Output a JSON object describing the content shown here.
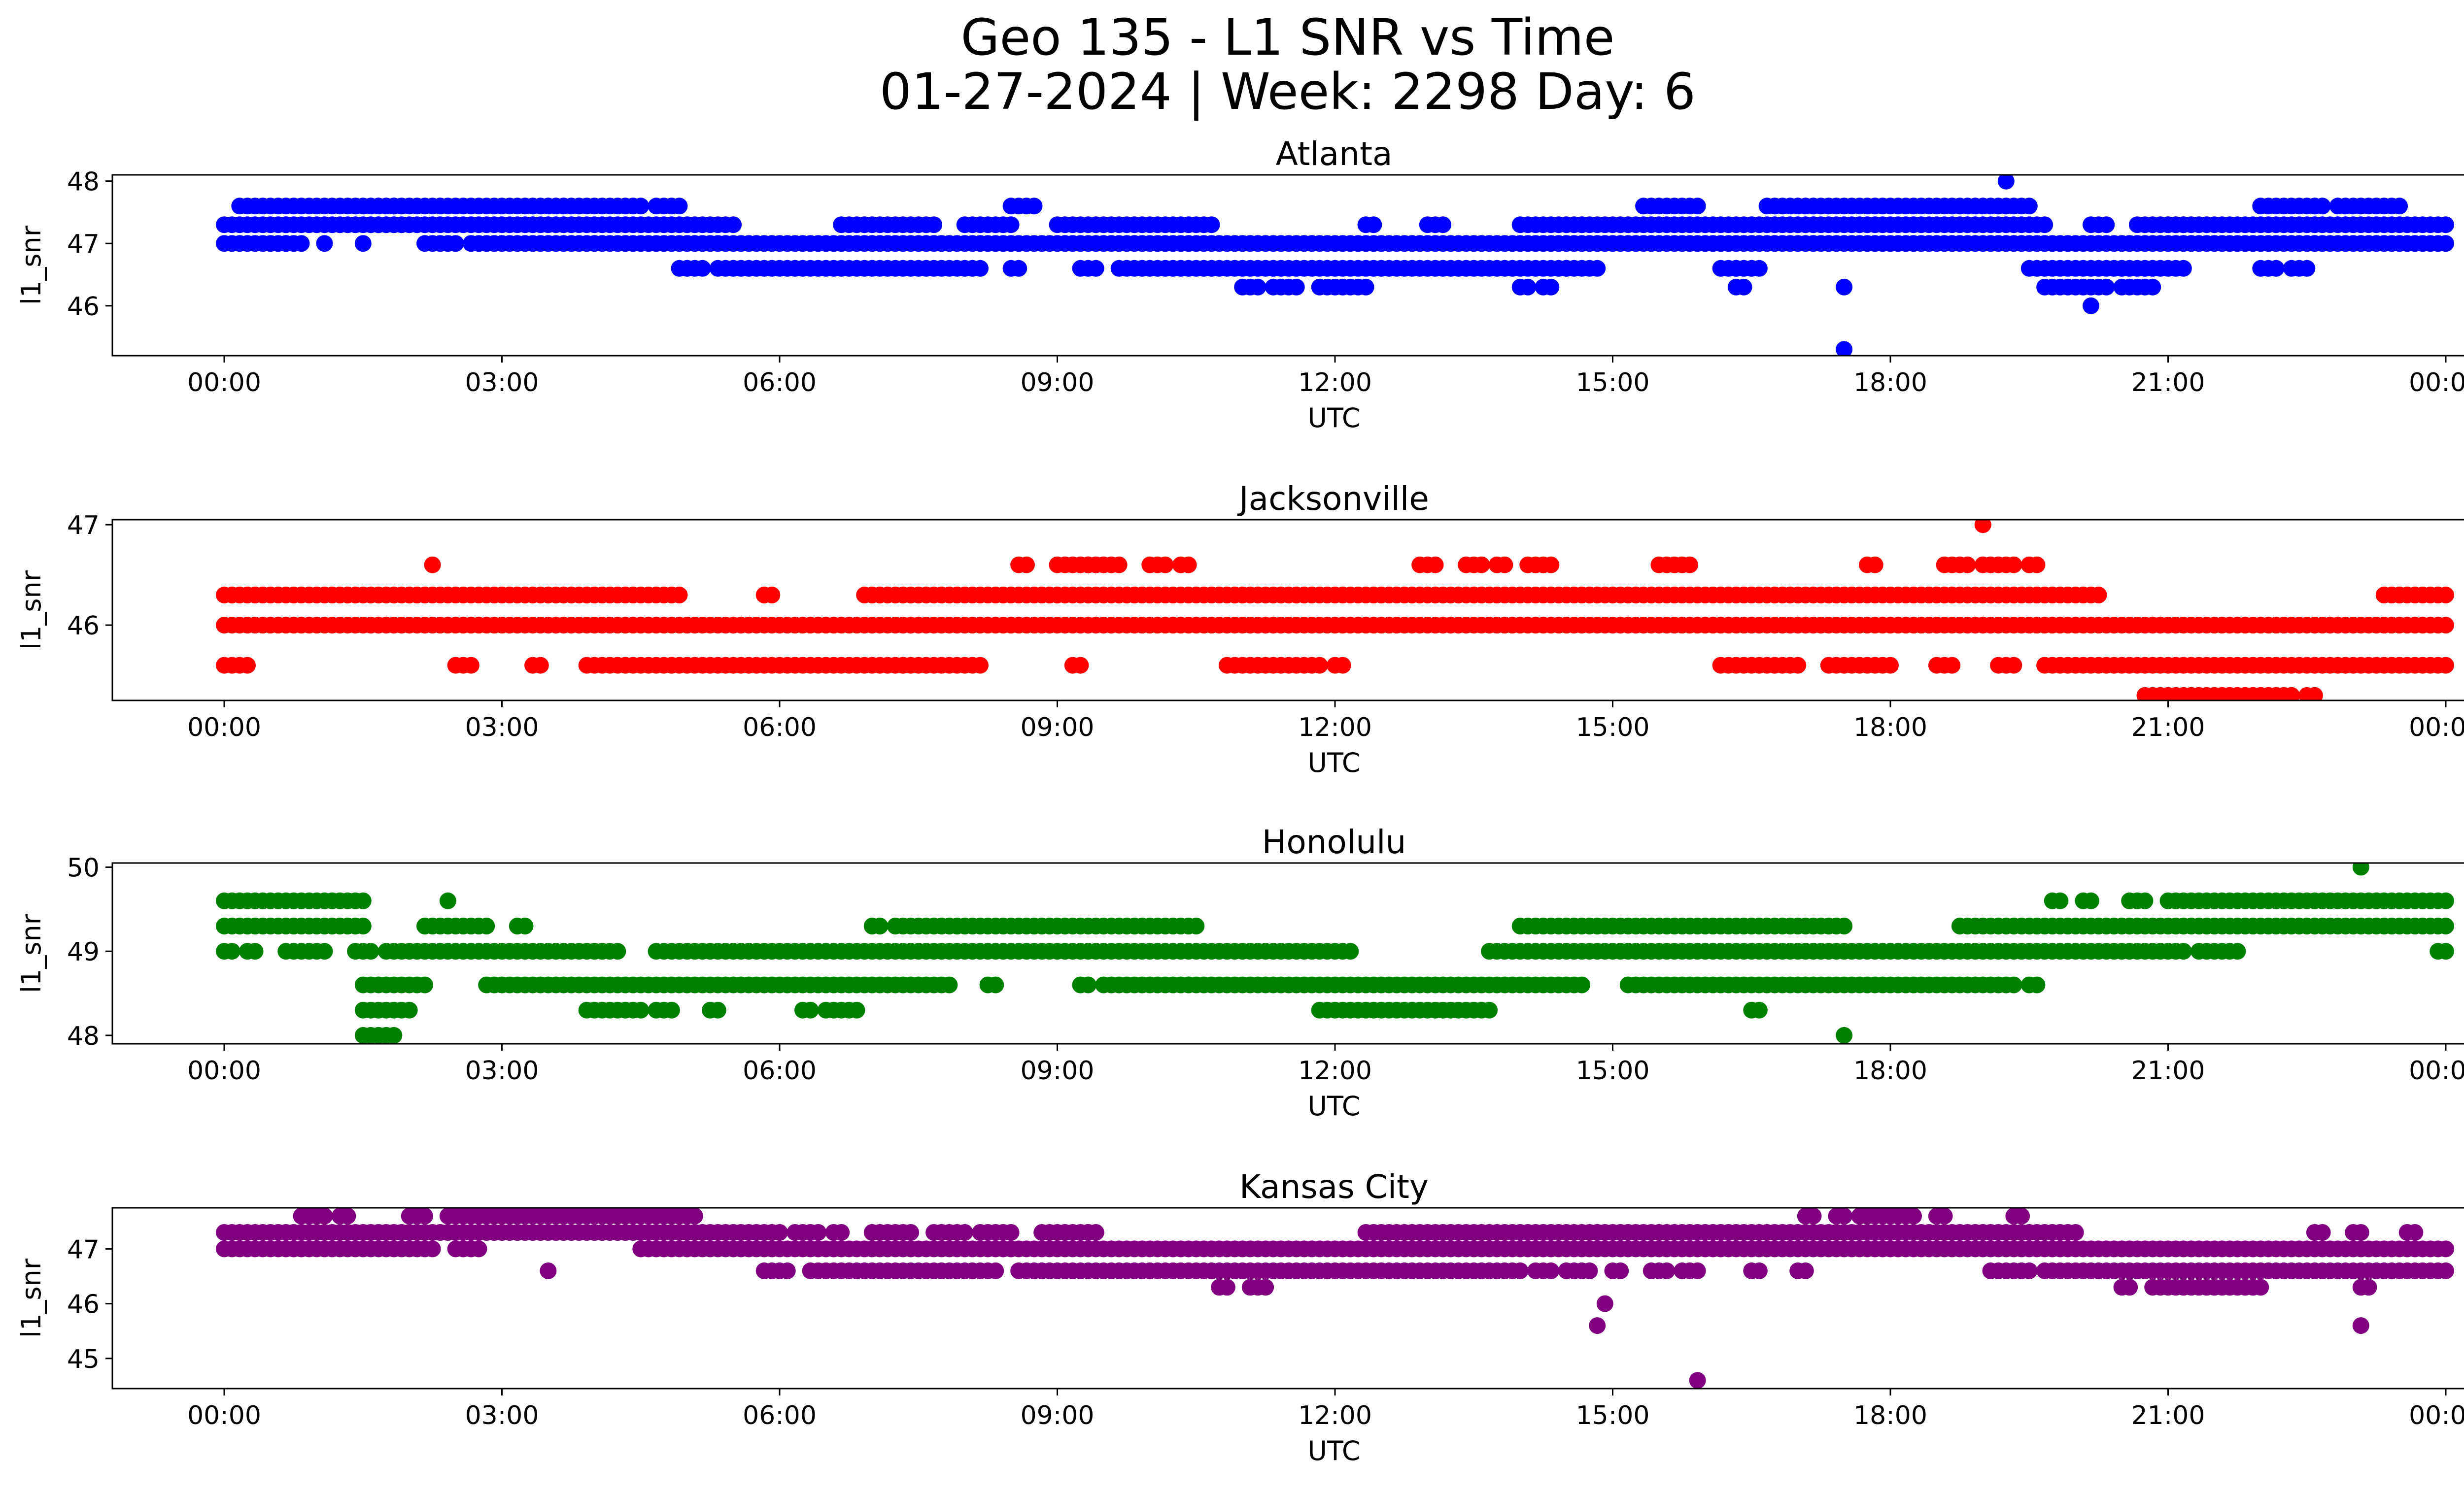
{
  "figure": {
    "title_line1": "Geo 135 - L1 SNR vs Time",
    "title_line2": "01-27-2024 | Week: 2298 Day: 6"
  },
  "chart_data": [
    {
      "type": "scatter",
      "title": "Atlanta",
      "xlabel": "UTC",
      "ylabel": "l1_snr",
      "color": "#0000ff",
      "xlim": [
        "00:00",
        "24:00"
      ],
      "ylim": [
        45.2,
        48.1
      ],
      "xticks": [
        "00:00",
        "03:00",
        "06:00",
        "09:00",
        "12:00",
        "15:00",
        "18:00",
        "21:00",
        "00:00"
      ],
      "yticks": [
        46,
        47,
        48
      ],
      "bands": [
        {
          "y": 47.3,
          "ranges": [
            [
              "00:00",
              "00:40"
            ],
            [
              "00:40",
              "05:30"
            ],
            [
              "06:40",
              "07:40"
            ],
            [
              "08:00",
              "08:30"
            ],
            [
              "09:00",
              "10:40"
            ],
            [
              "12:20",
              "12:25"
            ],
            [
              "13:00",
              "13:10"
            ],
            [
              "14:00",
              "14:40"
            ],
            [
              "14:40",
              "19:40"
            ],
            [
              "20:10",
              "20:20"
            ],
            [
              "20:40",
              "21:10"
            ],
            [
              "21:00",
              "24:00"
            ]
          ]
        },
        {
          "y": 47.0,
          "ranges": [
            [
              "00:00",
              "00:45"
            ],
            [
              "02:10",
              "02:30"
            ],
            [
              "02:40",
              "24:00"
            ]
          ]
        },
        {
          "y": 46.6,
          "ranges": [
            [
              "04:55",
              "05:10"
            ],
            [
              "05:20",
              "08:10"
            ],
            [
              "08:30",
              "08:35"
            ],
            [
              "09:15",
              "09:25"
            ],
            [
              "09:40",
              "14:30"
            ],
            [
              "14:30",
              "14:50"
            ],
            [
              "16:10",
              "16:20"
            ],
            [
              "16:20",
              "16:35"
            ],
            [
              "19:30",
              "21:10"
            ],
            [
              "22:00",
              "22:10"
            ],
            [
              "22:20",
              "22:30"
            ]
          ]
        },
        {
          "y": 47.6,
          "ranges": [
            [
              "00:10",
              "01:50"
            ],
            [
              "01:50",
              "04:30"
            ],
            [
              "04:40",
              "04:55"
            ],
            [
              "08:30",
              "08:45"
            ],
            [
              "15:20",
              "15:55"
            ],
            [
              "16:40",
              "19:30"
            ],
            [
              "22:00",
              "22:40"
            ],
            [
              "22:50",
              "23:30"
            ]
          ]
        },
        {
          "y": 46.3,
          "ranges": [
            [
              "11:00",
              "11:10"
            ],
            [
              "11:20",
              "11:35"
            ],
            [
              "11:50",
              "12:20"
            ],
            [
              "14:00",
              "14:05"
            ],
            [
              "14:15",
              "14:20"
            ],
            [
              "16:20",
              "16:25"
            ],
            [
              "19:40",
              "20:20"
            ],
            [
              "20:30",
              "20:50"
            ]
          ]
        }
      ],
      "points": [
        {
          "x": "00:40",
          "y": 47.0
        },
        {
          "x": "00:50",
          "y": 47.0
        },
        {
          "x": "01:05",
          "y": 47.0
        },
        {
          "x": "01:30",
          "y": 47.0
        },
        {
          "x": "17:30",
          "y": 45.3
        },
        {
          "x": "17:30",
          "y": 46.3
        },
        {
          "x": "19:15",
          "y": 48.0
        },
        {
          "x": "20:10",
          "y": 46.0
        }
      ]
    },
    {
      "type": "scatter",
      "title": "Jacksonville",
      "xlabel": "UTC",
      "ylabel": "l1_snr",
      "color": "#ff0000",
      "xlim": [
        "00:00",
        "24:00"
      ],
      "ylim": [
        45.25,
        47.05
      ],
      "xticks": [
        "00:00",
        "03:00",
        "06:00",
        "09:00",
        "12:00",
        "15:00",
        "18:00",
        "21:00",
        "00:00"
      ],
      "yticks": [
        46,
        47
      ],
      "bands": [
        {
          "y": 46.0,
          "ranges": [
            [
              "00:00",
              "24:00"
            ]
          ]
        },
        {
          "y": 46.3,
          "ranges": [
            [
              "00:00",
              "04:55"
            ],
            [
              "05:50",
              "05:55"
            ],
            [
              "06:55",
              "20:15"
            ],
            [
              "23:20",
              "23:30"
            ],
            [
              "23:30",
              "23:45"
            ],
            [
              "23:50",
              "24:00"
            ]
          ]
        },
        {
          "y": 45.6,
          "ranges": [
            [
              "00:00",
              "00:15"
            ],
            [
              "02:30",
              "02:40"
            ],
            [
              "03:20",
              "03:25"
            ],
            [
              "03:55",
              "04:50"
            ],
            [
              "04:50",
              "07:20"
            ],
            [
              "07:20",
              "08:10"
            ],
            [
              "09:10",
              "09:15"
            ],
            [
              "10:50",
              "11:50"
            ],
            [
              "12:00",
              "12:05"
            ],
            [
              "16:10",
              "17:00"
            ],
            [
              "17:20",
              "18:00"
            ],
            [
              "18:30",
              "18:40"
            ],
            [
              "19:10",
              "19:20"
            ],
            [
              "19:40",
              "24:00"
            ]
          ]
        },
        {
          "y": 45.3,
          "ranges": [
            [
              "20:45",
              "22:20"
            ],
            [
              "22:30",
              "22:35"
            ]
          ]
        },
        {
          "y": 46.6,
          "ranges": [
            [
              "08:35",
              "08:40"
            ],
            [
              "09:00",
              "09:20"
            ],
            [
              "09:20",
              "09:40"
            ],
            [
              "10:00",
              "10:10"
            ],
            [
              "10:20",
              "10:25"
            ],
            [
              "12:55",
              "13:05"
            ],
            [
              "13:25",
              "13:35"
            ],
            [
              "13:45",
              "13:50"
            ],
            [
              "14:05",
              "14:20"
            ],
            [
              "15:30",
              "15:50"
            ],
            [
              "17:45",
              "17:50"
            ],
            [
              "18:35",
              "18:50"
            ],
            [
              "19:00",
              "19:20"
            ],
            [
              "19:30",
              "19:35"
            ]
          ]
        }
      ],
      "points": [
        {
          "x": "02:15",
          "y": 46.6
        },
        {
          "x": "19:00",
          "y": 47.0
        }
      ]
    },
    {
      "type": "scatter",
      "title": "Honolulu",
      "xlabel": "UTC",
      "ylabel": "l1_snr",
      "color": "#008000",
      "xlim": [
        "00:00",
        "24:00"
      ],
      "ylim": [
        47.9,
        50.05
      ],
      "xticks": [
        "00:00",
        "03:00",
        "06:00",
        "09:00",
        "12:00",
        "15:00",
        "18:00",
        "21:00",
        "00:00"
      ],
      "yticks": [
        48,
        49,
        50
      ],
      "bands": [
        {
          "y": 49.6,
          "ranges": [
            [
              "00:00",
              "01:30"
            ],
            [
              "19:45",
              "19:50"
            ],
            [
              "20:05",
              "20:10"
            ],
            [
              "20:35",
              "20:45"
            ],
            [
              "21:00",
              "21:15"
            ],
            [
              "21:20",
              "24:00"
            ]
          ]
        },
        {
          "y": 49.3,
          "ranges": [
            [
              "00:00",
              "01:30"
            ],
            [
              "02:10",
              "02:50"
            ],
            [
              "03:10",
              "03:15"
            ],
            [
              "07:00",
              "07:05"
            ],
            [
              "07:15",
              "10:30"
            ],
            [
              "14:00",
              "17:30"
            ],
            [
              "18:45",
              "24:00"
            ]
          ]
        },
        {
          "y": 49.0,
          "ranges": [
            [
              "00:00",
              "00:05"
            ],
            [
              "00:15",
              "00:20"
            ],
            [
              "00:40",
              "00:55"
            ],
            [
              "01:00",
              "01:05"
            ],
            [
              "01:25",
              "01:35"
            ],
            [
              "01:45",
              "04:05"
            ],
            [
              "04:00",
              "04:15"
            ],
            [
              "04:40",
              "12:10"
            ],
            [
              "13:40",
              "21:10"
            ],
            [
              "21:20",
              "21:45"
            ],
            [
              "23:55",
              "24:00"
            ]
          ]
        },
        {
          "y": 48.6,
          "ranges": [
            [
              "01:30",
              "02:10"
            ],
            [
              "02:50",
              "07:40"
            ],
            [
              "07:45",
              "07:50"
            ],
            [
              "08:15",
              "08:20"
            ],
            [
              "09:15",
              "09:20"
            ],
            [
              "09:30",
              "14:40"
            ],
            [
              "15:10",
              "19:20"
            ],
            [
              "19:30",
              "19:35"
            ]
          ]
        },
        {
          "y": 48.3,
          "ranges": [
            [
              "01:30",
              "02:00"
            ],
            [
              "03:55",
              "04:30"
            ],
            [
              "04:40",
              "04:50"
            ],
            [
              "05:15",
              "05:20"
            ],
            [
              "06:15",
              "06:20"
            ],
            [
              "06:30",
              "06:50"
            ],
            [
              "11:50",
              "13:40"
            ],
            [
              "16:30",
              "16:35"
            ]
          ]
        },
        {
          "y": 48.0,
          "ranges": [
            [
              "01:30",
              "01:50"
            ]
          ]
        }
      ],
      "points": [
        {
          "x": "02:25",
          "y": 49.6
        },
        {
          "x": "17:30",
          "y": 48.0
        },
        {
          "x": "23:05",
          "y": 50.0
        }
      ]
    },
    {
      "type": "scatter",
      "title": "Kansas City",
      "xlabel": "UTC",
      "ylabel": "l1_snr",
      "color": "#800080",
      "xlim": [
        "00:00",
        "24:00"
      ],
      "ylim": [
        44.45,
        47.75
      ],
      "xticks": [
        "00:00",
        "03:00",
        "06:00",
        "09:00",
        "12:00",
        "15:00",
        "18:00",
        "21:00",
        "00:00"
      ],
      "yticks": [
        45,
        46,
        47
      ],
      "bands": [
        {
          "y": 47.3,
          "ranges": [
            [
              "00:00",
              "06:00"
            ],
            [
              "06:10",
              "06:25"
            ],
            [
              "06:35",
              "06:40"
            ],
            [
              "07:00",
              "07:25"
            ],
            [
              "07:40",
              "08:00"
            ],
            [
              "08:10",
              "08:30"
            ],
            [
              "08:50",
              "09:20"
            ],
            [
              "09:20",
              "09:25"
            ],
            [
              "12:20",
              "14:50"
            ],
            [
              "14:50",
              "20:00"
            ],
            [
              "22:35",
              "22:40"
            ],
            [
              "23:00",
              "23:05"
            ],
            [
              "23:35",
              "23:40"
            ]
          ]
        },
        {
          "y": 47.0,
          "ranges": [
            [
              "00:00",
              "02:15"
            ],
            [
              "02:30",
              "02:45"
            ],
            [
              "04:30",
              "04:45"
            ],
            [
              "04:50",
              "24:00"
            ]
          ]
        },
        {
          "y": 46.6,
          "ranges": [
            [
              "05:50",
              "06:05"
            ],
            [
              "06:20",
              "08:20"
            ],
            [
              "08:35",
              "13:40"
            ],
            [
              "13:40",
              "14:00"
            ],
            [
              "14:10",
              "14:20"
            ],
            [
              "14:30",
              "14:45"
            ],
            [
              "15:00",
              "15:05"
            ],
            [
              "15:25",
              "15:35"
            ],
            [
              "15:45",
              "15:55"
            ],
            [
              "16:30",
              "16:35"
            ],
            [
              "17:00",
              "17:05"
            ],
            [
              "19:05",
              "19:15"
            ],
            [
              "19:20",
              "19:30"
            ],
            [
              "19:40",
              "24:00"
            ]
          ]
        },
        {
          "y": 47.6,
          "ranges": [
            [
              "00:50",
              "00:55"
            ],
            [
              "01:00",
              "01:05"
            ],
            [
              "01:15",
              "01:20"
            ],
            [
              "02:00",
              "02:10"
            ],
            [
              "02:25",
              "05:05"
            ],
            [
              "17:05",
              "17:10"
            ],
            [
              "17:25",
              "17:30"
            ],
            [
              "17:40",
              "18:05"
            ],
            [
              "18:10",
              "18:15"
            ],
            [
              "18:30",
              "18:35"
            ],
            [
              "19:20",
              "19:25"
            ]
          ]
        },
        {
          "y": 46.3,
          "ranges": [
            [
              "10:45",
              "10:50"
            ],
            [
              "11:05",
              "11:15"
            ],
            [
              "20:30",
              "20:35"
            ],
            [
              "20:50",
              "20:55"
            ],
            [
              "21:00",
              "22:00"
            ],
            [
              "23:05",
              "23:10"
            ]
          ]
        }
      ],
      "points": [
        {
          "x": "03:30",
          "y": 46.6
        },
        {
          "x": "14:50",
          "y": 45.6
        },
        {
          "x": "14:55",
          "y": 46.0
        },
        {
          "x": "15:55",
          "y": 44.6
        },
        {
          "x": "23:05",
          "y": 45.6
        }
      ]
    }
  ]
}
